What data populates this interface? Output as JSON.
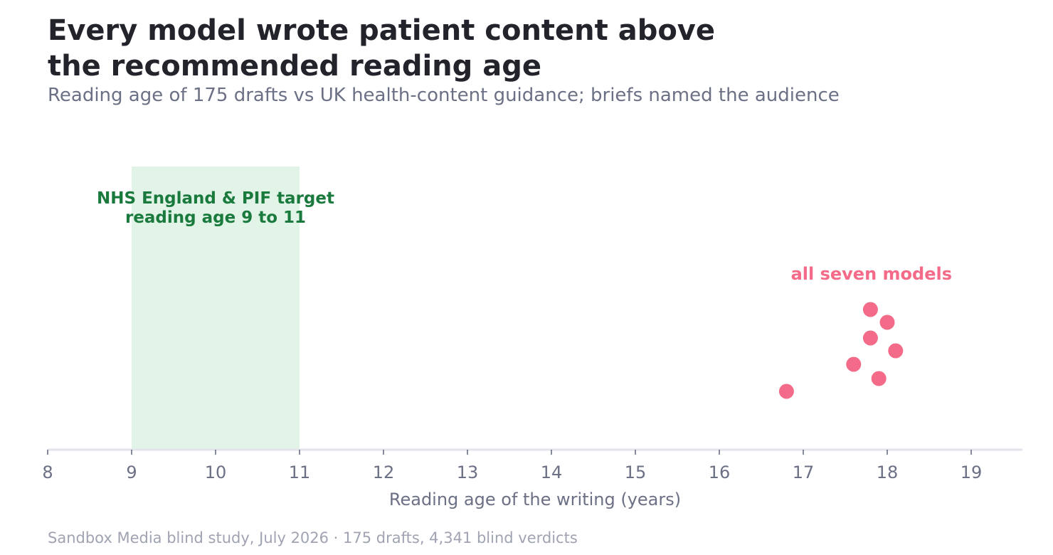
{
  "title_lines": [
    "Every model wrote patient content above",
    "the recommended reading age"
  ],
  "subtitle": "Reading age of 175 drafts vs UK health-content guidance; briefs named the audience",
  "source": "Sandbox Media blind study, July 2026  ·  175 drafts, 4,341 blind verdicts",
  "colors": {
    "points": "#f36b88",
    "band_fill": "#e2f4e8",
    "band_text": "#1a7a3d",
    "axis": "#e3e3eb"
  },
  "chart_data": {
    "type": "scatter",
    "xlabel": "Reading age of the writing (years)",
    "xlim": [
      8,
      19.6
    ],
    "xticks": [
      8,
      9,
      10,
      11,
      12,
      13,
      14,
      15,
      16,
      17,
      18,
      19
    ],
    "grid": false,
    "target_band": {
      "x_range": [
        9,
        11
      ],
      "label_lines": [
        "NHS England & PIF target",
        "reading age 9 to 11"
      ]
    },
    "series": [
      {
        "name": "all seven models",
        "x": [
          17.8,
          18.0,
          17.8,
          18.1,
          17.6,
          17.9,
          16.8
        ]
      }
    ]
  }
}
